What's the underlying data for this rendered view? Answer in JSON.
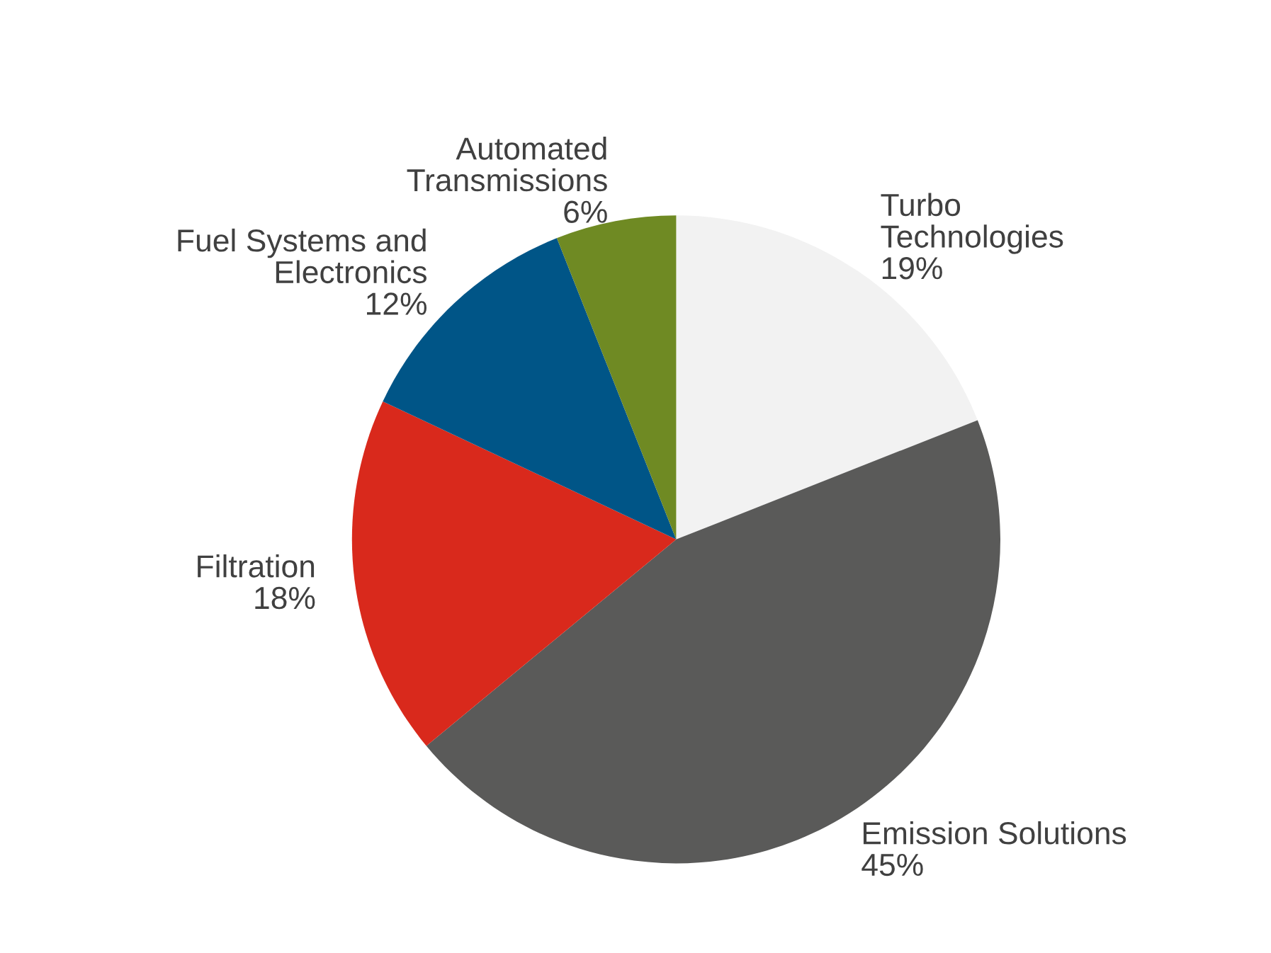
{
  "chart_data": {
    "type": "pie",
    "categories": [
      "Turbo\nTechnologies",
      "Emission Solutions",
      "Filtration",
      "Fuel Systems and\nElectronics",
      "Automated\nTransmissions"
    ],
    "values": [
      19,
      45,
      18,
      12,
      6
    ],
    "value_labels": [
      "19%",
      "45%",
      "18%",
      "12%",
      "6%"
    ],
    "colors": [
      "#f2f2f2",
      "#5a5a59",
      "#d9291c",
      "#005587",
      "#6f8a23"
    ]
  }
}
